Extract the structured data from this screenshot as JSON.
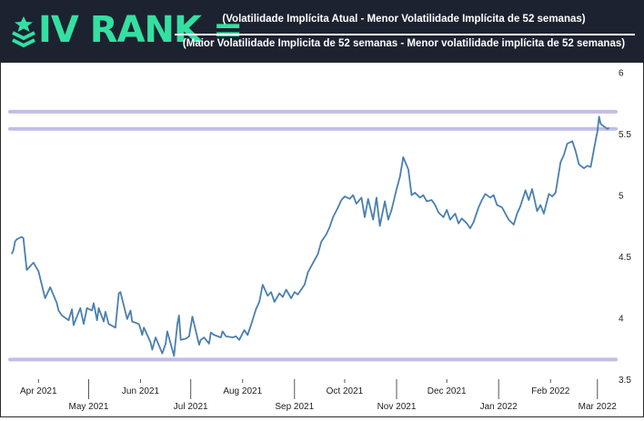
{
  "banner": {
    "brand": "IV RANK =",
    "numerator": "(Volatilidade Implícita Atual - Menor Volatilidade Implícita de 52 semanas)",
    "denominator": "(Maior Volatilidade Implicita de 52 semanas - Menor volatilidade implícita de 52 semanas)",
    "logo_icon": "chevron-rank-star-icon",
    "brand_color": "#34e0a1",
    "background_color": "#1c2230"
  },
  "chart_data": {
    "type": "line",
    "title": "",
    "xlabel": "",
    "ylabel": "",
    "ylim": [
      3.5,
      6.05
    ],
    "xlim": [
      "2021-03-15",
      "2022-03-12"
    ],
    "grid": false,
    "y_ticks": [
      "3.5",
      "4",
      "4.5",
      "5",
      "5.5",
      "6"
    ],
    "x_ticks_top": [
      "Apr 2021",
      "Jun 2021",
      "Aug 2021",
      "Oct 2021",
      "Dec 2021",
      "Feb 2022"
    ],
    "x_ticks_bottom": [
      "May 2021",
      "Jul 2021",
      "Sep 2021",
      "Nov 2021",
      "Jan 2022",
      "Mar 2022"
    ],
    "tick_dates_top": [
      "2021-04-01",
      "2021-06-01",
      "2021-08-01",
      "2021-10-01",
      "2021-12-01",
      "2022-02-01"
    ],
    "tick_dates_bottom": [
      "2021-05-01",
      "2021-07-01",
      "2021-09-01",
      "2021-11-01",
      "2022-01-01",
      "2022-03-01"
    ],
    "series": [
      {
        "color": "#4a7fb0",
        "x": [
          "2021-03-16",
          "2021-03-17",
          "2021-03-18",
          "2021-03-19",
          "2021-03-22",
          "2021-03-23",
          "2021-03-25",
          "2021-03-29",
          "2021-04-01",
          "2021-04-05",
          "2021-04-08",
          "2021-04-12",
          "2021-04-13",
          "2021-04-15",
          "2021-04-19",
          "2021-04-21",
          "2021-04-22",
          "2021-04-26",
          "2021-04-28",
          "2021-04-30",
          "2021-05-03",
          "2021-05-04",
          "2021-05-06",
          "2021-05-07",
          "2021-05-10",
          "2021-05-11",
          "2021-05-13",
          "2021-05-17",
          "2021-05-19",
          "2021-05-20",
          "2021-05-24",
          "2021-05-26",
          "2021-05-27",
          "2021-05-31",
          "2021-06-01",
          "2021-06-02",
          "2021-06-03",
          "2021-06-07",
          "2021-06-08",
          "2021-06-10",
          "2021-06-14",
          "2021-06-16",
          "2021-06-17",
          "2021-06-21",
          "2021-06-23",
          "2021-06-24",
          "2021-06-25",
          "2021-06-28",
          "2021-06-30",
          "2021-07-02",
          "2021-07-06",
          "2021-07-07",
          "2021-07-09",
          "2021-07-12",
          "2021-07-13",
          "2021-07-15",
          "2021-07-19",
          "2021-07-20",
          "2021-07-22",
          "2021-07-26",
          "2021-07-28",
          "2021-07-30",
          "2021-08-02",
          "2021-08-04",
          "2021-08-06",
          "2021-08-09",
          "2021-08-11",
          "2021-08-13",
          "2021-08-16",
          "2021-08-18",
          "2021-08-20",
          "2021-08-23",
          "2021-08-25",
          "2021-08-27",
          "2021-08-30",
          "2021-09-01",
          "2021-09-03",
          "2021-09-07",
          "2021-09-09",
          "2021-09-13",
          "2021-09-15",
          "2021-09-17",
          "2021-09-20",
          "2021-09-22",
          "2021-09-24",
          "2021-09-27",
          "2021-09-29",
          "2021-10-01",
          "2021-10-04",
          "2021-10-06",
          "2021-10-08",
          "2021-10-11",
          "2021-10-13",
          "2021-10-15",
          "2021-10-18",
          "2021-10-20",
          "2021-10-22",
          "2021-10-25",
          "2021-10-27",
          "2021-10-29",
          "2021-11-01",
          "2021-11-03",
          "2021-11-05",
          "2021-11-08",
          "2021-11-10",
          "2021-11-12",
          "2021-11-15",
          "2021-11-17",
          "2021-11-19",
          "2021-11-22",
          "2021-11-24",
          "2021-11-26",
          "2021-11-29",
          "2021-12-01",
          "2021-12-03",
          "2021-12-06",
          "2021-12-08",
          "2021-12-10",
          "2021-12-13",
          "2021-12-15",
          "2021-12-17",
          "2021-12-20",
          "2021-12-22",
          "2021-12-24",
          "2021-12-27",
          "2021-12-29",
          "2021-12-31",
          "2022-01-03",
          "2022-01-05",
          "2022-01-07",
          "2022-01-10",
          "2022-01-12",
          "2022-01-14",
          "2022-01-17",
          "2022-01-19",
          "2022-01-21",
          "2022-01-24",
          "2022-01-26",
          "2022-01-28",
          "2022-01-31",
          "2022-02-02",
          "2022-02-04",
          "2022-02-07",
          "2022-02-09",
          "2022-02-11",
          "2022-02-14",
          "2022-02-16",
          "2022-02-18",
          "2022-02-21",
          "2022-02-23",
          "2022-02-25",
          "2022-02-28",
          "2022-03-01",
          "2022-03-02",
          "2022-03-03",
          "2022-03-04",
          "2022-03-07",
          "2022-03-08"
        ],
        "y": [
          4.52,
          4.55,
          4.62,
          4.64,
          4.66,
          4.65,
          4.39,
          4.45,
          4.38,
          4.16,
          4.25,
          4.12,
          4.06,
          4.02,
          3.98,
          4.07,
          3.94,
          4.08,
          3.95,
          4.08,
          4.06,
          4.12,
          3.98,
          4.08,
          3.97,
          4.05,
          3.95,
          3.92,
          4.2,
          4.21,
          3.99,
          4.06,
          3.97,
          3.95,
          3.91,
          3.86,
          3.92,
          3.8,
          3.74,
          3.84,
          3.71,
          3.79,
          3.89,
          3.69,
          3.95,
          4.02,
          3.82,
          3.83,
          3.85,
          4.01,
          3.78,
          3.82,
          3.84,
          3.79,
          3.88,
          3.86,
          3.84,
          3.89,
          3.85,
          3.84,
          3.85,
          3.82,
          3.9,
          3.86,
          3.94,
          4.07,
          4.13,
          4.27,
          4.18,
          4.21,
          4.13,
          4.2,
          4.17,
          4.23,
          4.16,
          4.21,
          4.19,
          4.27,
          4.37,
          4.47,
          4.52,
          4.62,
          4.68,
          4.74,
          4.82,
          4.9,
          4.96,
          4.99,
          4.97,
          5.0,
          4.93,
          4.98,
          4.82,
          4.97,
          4.8,
          4.98,
          4.75,
          4.95,
          4.8,
          4.88,
          5.05,
          5.15,
          5.31,
          5.21,
          5.0,
          5.02,
          4.98,
          5.0,
          4.95,
          4.96,
          4.92,
          4.86,
          4.82,
          4.88,
          4.8,
          4.85,
          4.77,
          4.81,
          4.77,
          4.73,
          4.78,
          4.9,
          4.96,
          5.01,
          4.98,
          5.0,
          4.92,
          4.9,
          4.85,
          4.8,
          4.76,
          4.85,
          4.91,
          5.04,
          4.96,
          5.05,
          4.87,
          4.92,
          4.85,
          5.01,
          4.99,
          5.02,
          5.27,
          5.33,
          5.42,
          5.44,
          5.36,
          5.25,
          5.22,
          5.24,
          5.23,
          5.45,
          5.52,
          5.64,
          5.58,
          5.57,
          5.54,
          5.55
        ]
      }
    ],
    "reference_lines": [
      {
        "label": "",
        "y": 5.68,
        "color": "#c2bde6"
      },
      {
        "label": "",
        "y": 5.54,
        "color": "#c2bde6"
      },
      {
        "label": "",
        "y": 3.66,
        "color": "#c2bde6"
      }
    ]
  }
}
